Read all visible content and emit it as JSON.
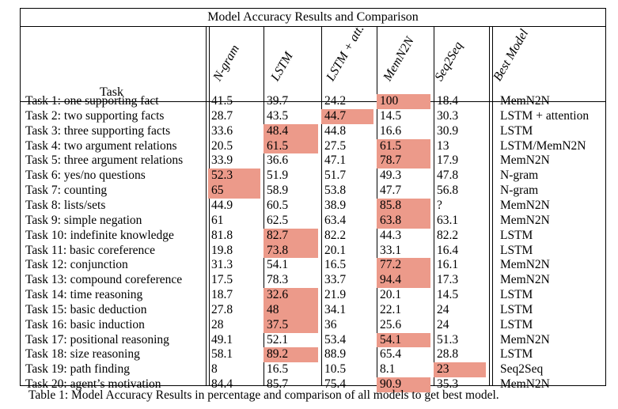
{
  "table": {
    "title": "Model Accuracy Results and Comparison",
    "task_header": "Task",
    "model_headers": [
      "N-gram",
      "LSTM",
      "LSTM + att.",
      "MemN2N",
      "Seq2Seq"
    ],
    "best_header": "Best Model",
    "highlight_color": "#ec9a8a",
    "rows": [
      {
        "task": "Task 1:  one supporting fact",
        "vals": [
          "41.5",
          "39.7",
          "24.2",
          "100",
          "18.4"
        ],
        "hl": 3,
        "best": "MemN2N"
      },
      {
        "task": "Task 2:  two supporting facts",
        "vals": [
          "28.7",
          "43.5",
          "44.7",
          "14.5",
          "30.3"
        ],
        "hl": 2,
        "best": "LSTM + attention"
      },
      {
        "task": "Task 3:  three supporting facts",
        "vals": [
          "33.6",
          "48.4",
          "44.8",
          "16.6",
          "30.9"
        ],
        "hl": 1,
        "best": "LSTM"
      },
      {
        "task": "Task 4:  two argument relations",
        "vals": [
          "20.5",
          "61.5",
          "27.5",
          "61.5",
          "13"
        ],
        "hl": [
          1,
          3
        ],
        "best": "LSTM/MemN2N"
      },
      {
        "task": "Task 5:  three argument relations",
        "vals": [
          "33.9",
          "36.6",
          "47.1",
          "78.7",
          "17.9"
        ],
        "hl": 3,
        "best": "MemN2N"
      },
      {
        "task": "Task 6:  yes/no questions",
        "vals": [
          "52.3",
          "51.9",
          "51.7",
          "49.3",
          "47.8"
        ],
        "hl": 0,
        "best": "N-gram"
      },
      {
        "task": "Task 7:  counting",
        "vals": [
          "65",
          "58.9",
          "53.8",
          "47.7",
          "56.8"
        ],
        "hl": 0,
        "best": "N-gram"
      },
      {
        "task": "Task 8:  lists/sets",
        "vals": [
          "44.9",
          "60.5",
          "38.9",
          "85.8",
          "?"
        ],
        "hl": 3,
        "best": "MemN2N"
      },
      {
        "task": "Task 9:  simple negation",
        "vals": [
          "61",
          "62.5",
          "63.4",
          "63.8",
          "63.1"
        ],
        "hl": 3,
        "best": "MemN2N"
      },
      {
        "task": "Task 10:  indefinite knowledge",
        "vals": [
          "81.8",
          "82.7",
          "82.2",
          "44.3",
          "82.2"
        ],
        "hl": 1,
        "best": "LSTM"
      },
      {
        "task": "Task 11:  basic coreference",
        "vals": [
          "19.8",
          "73.8",
          "20.1",
          "33.1",
          "16.4"
        ],
        "hl": 1,
        "best": "LSTM"
      },
      {
        "task": "Task 12:  conjunction",
        "vals": [
          "31.3",
          "54.1",
          "16.5",
          "77.2",
          "16.1"
        ],
        "hl": 3,
        "best": "MemN2N"
      },
      {
        "task": "Task 13:  compound coreference",
        "vals": [
          "17.5",
          "78.3",
          "33.7",
          "94.4",
          "17.3"
        ],
        "hl": 3,
        "best": "MemN2N"
      },
      {
        "task": "Task 14:  time reasoning",
        "vals": [
          "18.7",
          "32.6",
          "21.9",
          "20.1",
          "14.5"
        ],
        "hl": 1,
        "best": "LSTM"
      },
      {
        "task": "Task 15:  basic deduction",
        "vals": [
          "27.8",
          "48",
          "34.1",
          "22.1",
          "24"
        ],
        "hl": 1,
        "best": "LSTM"
      },
      {
        "task": "Task 16:  basic induction",
        "vals": [
          "28",
          "37.5",
          "36",
          "25.6",
          "24"
        ],
        "hl": 1,
        "best": "LSTM"
      },
      {
        "task": "Task 17:  positional reasoning",
        "vals": [
          "49.1",
          "52.1",
          "53.4",
          "54.1",
          "51.3"
        ],
        "hl": 3,
        "best": "MemN2N"
      },
      {
        "task": "Task 18:  size reasoning",
        "vals": [
          "58.1",
          "89.2",
          "88.9",
          "65.4",
          "28.8"
        ],
        "hl": 1,
        "best": "LSTM"
      },
      {
        "task": "Task 19:  path finding",
        "vals": [
          "8",
          "16.5",
          "10.5",
          "8.1",
          "23"
        ],
        "hl": 4,
        "best": "Seq2Seq"
      },
      {
        "task": "Task 20:  agent’s motivation",
        "vals": [
          "84.4",
          "85.7",
          "75.4",
          "90.9",
          "35.3"
        ],
        "hl": 3,
        "best": "MemN2N"
      }
    ]
  },
  "caption": "Table 1: Model Accuracy Results in percentage and comparison of all models to get best model."
}
